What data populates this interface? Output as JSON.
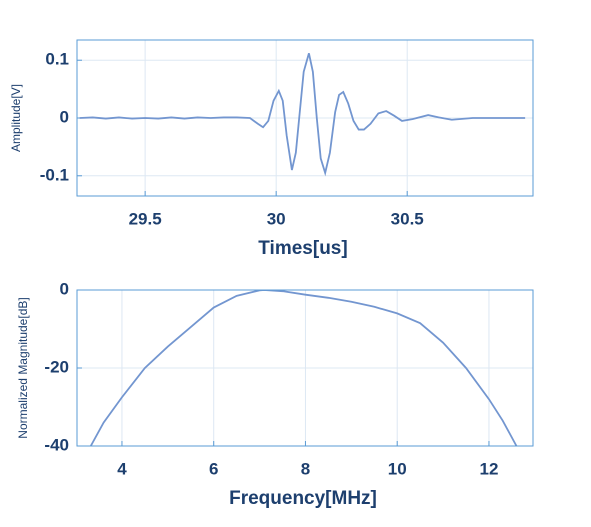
{
  "chart_data": [
    {
      "type": "line",
      "xlabel": "Times[us]",
      "ylabel": "Amplitude[V]",
      "xlim": [
        29.24,
        30.98
      ],
      "ylim": [
        -0.135,
        0.135
      ],
      "xticks": [
        29.5,
        30,
        30.5
      ],
      "yticks": [
        -0.1,
        0,
        0.1
      ],
      "grid": true,
      "series": [
        {
          "color": "#7396d0",
          "x": [
            29.25,
            29.3,
            29.35,
            29.4,
            29.45,
            29.5,
            29.55,
            29.6,
            29.65,
            29.7,
            29.75,
            29.8,
            29.85,
            29.9,
            29.93,
            29.95,
            29.97,
            29.99,
            30.01,
            30.025,
            30.04,
            30.06,
            30.075,
            30.09,
            30.105,
            30.125,
            30.14,
            30.155,
            30.17,
            30.187,
            30.205,
            30.225,
            30.24,
            30.256,
            30.275,
            30.295,
            30.315,
            30.335,
            30.36,
            30.39,
            30.42,
            30.45,
            30.48,
            30.52,
            30.58,
            30.62,
            30.67,
            30.75,
            30.95
          ],
          "values": [
            0,
            0.001,
            -0.001,
            0.001,
            -0.001,
            0,
            -0.001,
            0.001,
            -0.001,
            0.001,
            0,
            0.001,
            0.001,
            0,
            -0.01,
            -0.016,
            -0.005,
            0.03,
            0.047,
            0.03,
            -0.03,
            -0.09,
            -0.06,
            0.01,
            0.08,
            0.112,
            0.08,
            0.0,
            -0.07,
            -0.095,
            -0.06,
            0.01,
            0.04,
            0.045,
            0.025,
            -0.005,
            -0.02,
            -0.02,
            -0.01,
            0.008,
            0.012,
            0.004,
            -0.005,
            -0.002,
            0.005,
            0.001,
            -0.003,
            0,
            0
          ]
        }
      ]
    },
    {
      "type": "line",
      "xlabel": "Frequency[MHz]",
      "ylabel": "Normalized Magnitude[dB]",
      "xlim": [
        3.02,
        12.96
      ],
      "ylim": [
        -40,
        0
      ],
      "xticks": [
        4,
        6,
        8,
        10,
        12
      ],
      "yticks": [
        -40,
        -20,
        0
      ],
      "grid": true,
      "series": [
        {
          "color": "#7396d0",
          "x": [
            3.32,
            3.6,
            4,
            4.5,
            5,
            5.5,
            6,
            6.5,
            7,
            7.1,
            7.5,
            8,
            8.5,
            9,
            9.5,
            10,
            10.5,
            11,
            11.5,
            12,
            12.3,
            12.6
          ],
          "values": [
            -40,
            -34,
            -27.5,
            -20,
            -14.5,
            -9.5,
            -4.5,
            -1.5,
            -0.1,
            0,
            -0.3,
            -1.2,
            -2,
            -3,
            -4.3,
            -6,
            -8.5,
            -13.5,
            -20,
            -28,
            -33.5,
            -40
          ]
        }
      ]
    }
  ]
}
